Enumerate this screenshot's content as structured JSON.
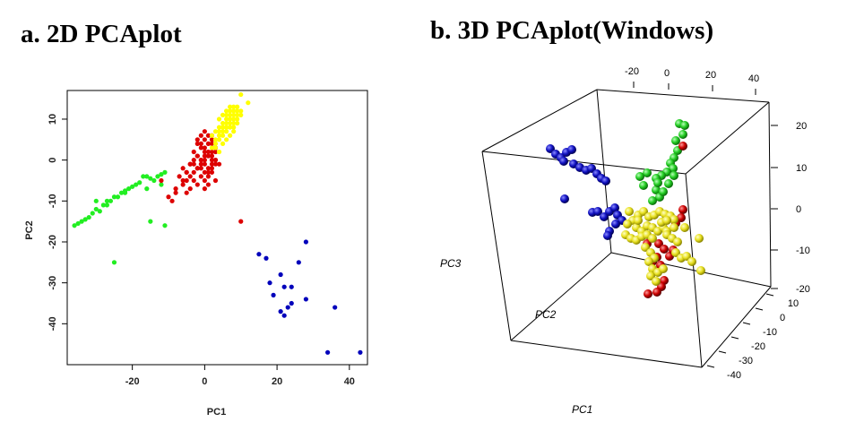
{
  "titles": {
    "a": "a. 2D PCAplot",
    "b": "b. 3D PCAplot(Windows)"
  },
  "colors": {
    "green": "#22ee22",
    "blue": "#0000bb",
    "red": "#dd0000",
    "yellow": "#ffff00"
  },
  "chart_data": [
    {
      "type": "scatter",
      "title": "a. 2D PCAplot",
      "xlabel": "PC1",
      "ylabel": "PC2",
      "xlim": [
        -38,
        45
      ],
      "ylim": [
        -50,
        17
      ],
      "xticks": [
        -20,
        0,
        20,
        40
      ],
      "yticks": [
        10,
        0,
        -10,
        -20,
        -30,
        -40
      ],
      "grid": false,
      "series": [
        {
          "color": "green",
          "x": [
            -36,
            -35,
            -34,
            -33,
            -32,
            -31,
            -30,
            -29,
            -28,
            -27,
            -26,
            -25,
            -24,
            -23,
            -22,
            -21,
            -20,
            -19,
            -18,
            -17,
            -16,
            -15,
            -14,
            -13,
            -12,
            -11,
            -30,
            -27,
            -22,
            -16,
            -12,
            -25,
            -15,
            -11
          ],
          "y": [
            -16,
            -15.5,
            -15,
            -14.5,
            -14,
            -13,
            -12,
            -12.5,
            -11,
            -10,
            -10,
            -9,
            -9,
            -8,
            -7.5,
            -7,
            -6.5,
            -6,
            -5.5,
            -4,
            -4,
            -4.5,
            -5,
            -4,
            -3.5,
            -3,
            -10,
            -11,
            -8,
            -7,
            -6,
            -25,
            -15,
            -16
          ]
        },
        {
          "color": "blue",
          "x": [
            15,
            17,
            18,
            19,
            21,
            22,
            23,
            21,
            24,
            26,
            28,
            22,
            24,
            28,
            36,
            34,
            43
          ],
          "y": [
            -23,
            -24,
            -30,
            -33,
            -28,
            -31,
            -36,
            -37,
            -31,
            -25,
            -20,
            -38,
            -35,
            -34,
            -36,
            -47,
            -47
          ]
        },
        {
          "color": "red",
          "x": [
            -10,
            -8,
            -6,
            -5,
            -4,
            -3,
            -2,
            -1,
            0,
            1,
            2,
            3,
            -2,
            -1,
            0,
            1,
            2,
            -3,
            -2,
            -1,
            0,
            1,
            2,
            3,
            -1,
            0,
            1,
            2,
            -4,
            -3,
            -2,
            -1,
            0,
            1,
            2,
            3,
            4,
            -6,
            -5,
            -4,
            -3,
            -2,
            -1,
            0,
            1,
            2,
            3,
            -2,
            -1,
            0,
            1,
            2,
            3,
            -7,
            -6,
            -5,
            -3,
            -1,
            1,
            2,
            3,
            0,
            1,
            -2,
            0,
            -4,
            -8,
            -12,
            10,
            0,
            2,
            3,
            -5,
            -9
          ],
          "y": [
            -9,
            -7,
            -6,
            -5,
            -4,
            -3,
            -2,
            -1,
            0,
            1,
            2,
            3,
            5,
            4,
            3,
            4,
            5,
            2,
            1,
            0,
            1,
            2,
            1,
            0,
            3,
            2,
            1,
            0,
            -1,
            -1,
            -2,
            -2,
            -3,
            -3,
            -2,
            -1,
            -1,
            -2,
            -3,
            -1,
            0,
            1,
            0,
            -1,
            -2,
            -1,
            0,
            4,
            6,
            5,
            6,
            4,
            3,
            -4,
            -5,
            -3,
            -5,
            -4,
            -4,
            -3,
            -5,
            -5,
            -6,
            -6,
            -7,
            -7,
            -8,
            -5,
            -15,
            7,
            6,
            2,
            -8,
            -10
          ]
        },
        {
          "color": "yellow",
          "x": [
            10,
            12,
            9,
            8,
            7,
            6,
            5,
            4,
            3,
            2,
            8,
            7,
            6,
            5,
            4,
            3,
            9,
            8,
            7,
            6,
            5,
            4,
            3,
            2,
            9,
            8,
            10,
            9,
            8,
            7,
            6,
            5,
            4,
            7,
            6,
            8,
            5,
            4,
            3,
            6,
            7,
            8,
            9,
            10,
            5,
            4,
            6,
            7
          ],
          "y": [
            16,
            14,
            13,
            12,
            11,
            10,
            9,
            8,
            7,
            6,
            10,
            9,
            8,
            7,
            6,
            5,
            12,
            11,
            10,
            9,
            8,
            7,
            4,
            3,
            9,
            8,
            11,
            10,
            9,
            13,
            12,
            11,
            10,
            8,
            7,
            7,
            6,
            5,
            3,
            11,
            12,
            13,
            11,
            12,
            4,
            2,
            5,
            6
          ]
        }
      ]
    },
    {
      "type": "scatter3d",
      "title": "b. 3D PCAplot(Windows)",
      "xlabel": "PC1",
      "ylabel": "PC2",
      "zlabel": "PC3",
      "top_ticks": [
        "-20",
        "0",
        "20",
        "40"
      ],
      "right_ticks": [
        "20",
        "10",
        "0",
        "-10",
        "-20"
      ],
      "front_ticks": [
        "10",
        "0",
        "-10",
        "-20",
        "-30",
        "-40"
      ],
      "series": [
        {
          "color": "blue",
          "points": [
            [
              614,
              166
            ],
            [
              620,
              172
            ],
            [
              626,
              176
            ],
            [
              632,
              170
            ],
            [
              638,
              167
            ],
            [
              629,
              180
            ],
            [
              640,
              183
            ],
            [
              647,
              187
            ],
            [
              654,
              190
            ],
            [
              660,
              188
            ],
            [
              666,
              194
            ],
            [
              671,
              199
            ],
            [
              676,
              202
            ],
            [
              630,
              222
            ],
            [
              661,
              237
            ],
            [
              667,
              236
            ],
            [
              674,
              242
            ],
            [
              680,
              236
            ],
            [
              686,
              232
            ],
            [
              689,
              240
            ],
            [
              694,
              246
            ],
            [
              687,
              250
            ],
            [
              680,
              258
            ],
            [
              678,
              263
            ]
          ]
        },
        {
          "color": "green",
          "points": [
            [
              758,
              138
            ],
            [
              764,
              140
            ],
            [
              762,
              150
            ],
            [
              754,
              157
            ],
            [
              756,
              168
            ],
            [
              752,
              176
            ],
            [
              748,
              182
            ],
            [
              751,
              188
            ],
            [
              744,
              192
            ],
            [
              738,
              196
            ],
            [
              732,
              199
            ],
            [
              722,
              193
            ],
            [
              714,
              197
            ],
            [
              718,
              207
            ],
            [
              732,
              212
            ],
            [
              736,
              220
            ],
            [
              728,
              224
            ],
            [
              746,
              205
            ],
            [
              752,
              196
            ],
            [
              740,
              214
            ],
            [
              734,
              204
            ]
          ]
        },
        {
          "color": "red",
          "points": [
            [
              762,
              163
            ],
            [
              762,
              234
            ],
            [
              760,
              243
            ],
            [
              754,
              249
            ],
            [
              722,
              272
            ],
            [
              735,
              272
            ],
            [
              741,
              278
            ],
            [
              747,
              286
            ],
            [
              751,
              279
            ],
            [
              733,
              287
            ],
            [
              737,
              296
            ],
            [
              741,
              313
            ],
            [
              738,
              320
            ],
            [
              733,
              326
            ],
            [
              723,
              328
            ],
            [
              728,
              292
            ]
          ]
        },
        {
          "color": "yellow",
          "points": [
            [
              702,
              236
            ],
            [
              706,
              246
            ],
            [
              712,
              240
            ],
            [
              718,
              236
            ],
            [
              724,
              242
            ],
            [
              730,
              240
            ],
            [
              736,
              236
            ],
            [
              742,
              239
            ],
            [
              748,
              241
            ],
            [
              752,
              245
            ],
            [
              710,
              254
            ],
            [
              716,
              258
            ],
            [
              722,
              252
            ],
            [
              728,
              254
            ],
            [
              734,
              258
            ],
            [
              740,
              254
            ],
            [
              744,
              258
            ],
            [
              698,
              262
            ],
            [
              704,
              266
            ],
            [
              710,
              268
            ],
            [
              716,
              264
            ],
            [
              722,
              262
            ],
            [
              728,
              266
            ],
            [
              744,
              262
            ],
            [
              750,
              266
            ],
            [
              756,
              270
            ],
            [
              720,
              276
            ],
            [
              726,
              282
            ],
            [
              730,
              288
            ],
            [
              724,
              292
            ],
            [
              728,
              300
            ],
            [
              734,
              304
            ],
            [
              740,
              300
            ],
            [
              726,
              308
            ],
            [
              732,
              314
            ],
            [
              754,
              282
            ],
            [
              760,
              288
            ],
            [
              766,
              286
            ],
            [
              772,
              292
            ],
            [
              780,
              266
            ],
            [
              782,
              302
            ],
            [
              712,
              246
            ],
            [
              738,
              248
            ],
            [
              700,
              250
            ],
            [
              744,
              246
            ],
            [
              752,
              254
            ],
            [
              764,
              254
            ]
          ]
        }
      ]
    }
  ]
}
